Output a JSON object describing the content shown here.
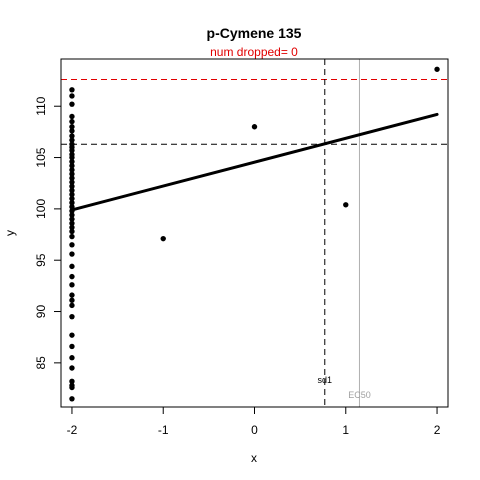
{
  "chart_data": {
    "type": "scatter",
    "title": "p-Cymene 135",
    "subtitle": "num dropped= 0",
    "xlabel": "x",
    "ylabel": "y",
    "xlim": [
      -2.12,
      2.12
    ],
    "ylim": [
      80.7,
      114.6
    ],
    "xticks": [
      -2,
      -1,
      0,
      1,
      2
    ],
    "yticks": [
      85,
      90,
      95,
      100,
      105,
      110
    ],
    "points": [
      {
        "x": -2,
        "y": 111.6
      },
      {
        "x": -2,
        "y": 111.0
      },
      {
        "x": -2,
        "y": 110.2
      },
      {
        "x": -2,
        "y": 109.0
      },
      {
        "x": -2,
        "y": 108.5
      },
      {
        "x": -2,
        "y": 108.0
      },
      {
        "x": -2,
        "y": 107.6
      },
      {
        "x": -2,
        "y": 107.1
      },
      {
        "x": -2,
        "y": 106.7
      },
      {
        "x": -2,
        "y": 106.3
      },
      {
        "x": -2,
        "y": 106.0
      },
      {
        "x": -2,
        "y": 105.7
      },
      {
        "x": -2,
        "y": 105.3
      },
      {
        "x": -2,
        "y": 105.0
      },
      {
        "x": -2,
        "y": 104.6
      },
      {
        "x": -2,
        "y": 104.2
      },
      {
        "x": -2,
        "y": 103.8
      },
      {
        "x": -2,
        "y": 103.4
      },
      {
        "x": -2,
        "y": 103.0
      },
      {
        "x": -2,
        "y": 102.6
      },
      {
        "x": -2,
        "y": 102.2
      },
      {
        "x": -2,
        "y": 101.8
      },
      {
        "x": -2,
        "y": 101.4
      },
      {
        "x": -2,
        "y": 101.0
      },
      {
        "x": -2,
        "y": 100.6
      },
      {
        "x": -2,
        "y": 100.2
      },
      {
        "x": -2,
        "y": 99.8
      },
      {
        "x": -2,
        "y": 99.4
      },
      {
        "x": -2,
        "y": 99.0
      },
      {
        "x": -2,
        "y": 98.6
      },
      {
        "x": -2,
        "y": 98.2
      },
      {
        "x": -2,
        "y": 97.8
      },
      {
        "x": -2,
        "y": 97.3
      },
      {
        "x": -2,
        "y": 96.5
      },
      {
        "x": -2,
        "y": 95.6
      },
      {
        "x": -2,
        "y": 94.4
      },
      {
        "x": -2,
        "y": 93.4
      },
      {
        "x": -2,
        "y": 92.6
      },
      {
        "x": -2,
        "y": 91.6
      },
      {
        "x": -2,
        "y": 91.1
      },
      {
        "x": -2,
        "y": 90.6
      },
      {
        "x": -2,
        "y": 89.5
      },
      {
        "x": -2,
        "y": 87.7
      },
      {
        "x": -2,
        "y": 86.6
      },
      {
        "x": -2,
        "y": 85.5
      },
      {
        "x": -2,
        "y": 84.5
      },
      {
        "x": -2,
        "y": 83.2
      },
      {
        "x": -2,
        "y": 82.8
      },
      {
        "x": -2,
        "y": 82.6
      },
      {
        "x": -2,
        "y": 81.5
      },
      {
        "x": -1,
        "y": 97.1
      },
      {
        "x": 0,
        "y": 108.0
      },
      {
        "x": 1,
        "y": 100.4
      },
      {
        "x": 2,
        "y": 113.6
      }
    ],
    "fit_line": {
      "x": [
        -2,
        2
      ],
      "y": [
        99.9,
        109.2
      ]
    },
    "hlines": [
      {
        "y": 112.6,
        "style": "dashed",
        "color": "#e00000"
      },
      {
        "y": 106.3,
        "style": "dashed",
        "color": "#000000"
      }
    ],
    "vlines": [
      {
        "x": 0.77,
        "label": "sd1",
        "style": "dashed",
        "color": "#000000"
      },
      {
        "x": 1.15,
        "label": "EC50",
        "style": "solid",
        "color": "#b0b0b0"
      }
    ],
    "grid": false,
    "legend": "none"
  }
}
